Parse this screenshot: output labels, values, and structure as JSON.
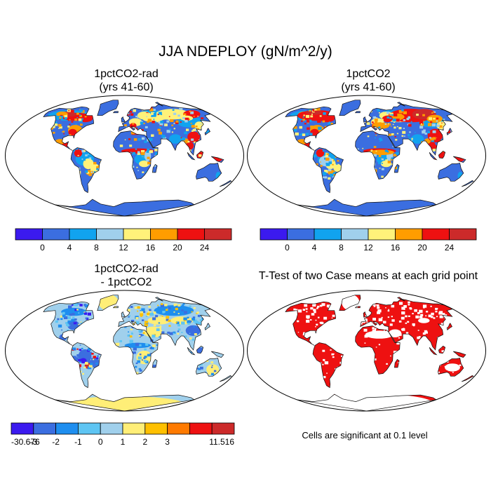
{
  "page": {
    "title": "JJA NDEPLOY (gN/m^2/y)",
    "footnote": "Cells are significant at 0.1 level"
  },
  "colors": {
    "abs_scale": [
      "#3b1aef",
      "#3b6ee0",
      "#11a3ef",
      "#a0d0ec",
      "#fff27a",
      "#ff9d00",
      "#ee1111",
      "#cc2a2a"
    ],
    "diff_scale": [
      "#3b1aef",
      "#3b6ee0",
      "#1e8eef",
      "#5ec5f3",
      "#a0d0ec",
      "#ffee77",
      "#ffc000",
      "#ff7a00",
      "#ee1111",
      "#cc2a2a"
    ],
    "significant": "#ee1111"
  },
  "chart_data": [
    {
      "type": "heatmap",
      "title": "1pctCO2-rad",
      "subtitle": "(yrs 41-60)",
      "colorbar_labels": [
        "0",
        "4",
        "8",
        "12",
        "16",
        "20",
        "24"
      ]
    },
    {
      "type": "heatmap",
      "title": "1pctCO2",
      "subtitle": "(yrs 41-60)",
      "colorbar_labels": [
        "0",
        "4",
        "8",
        "12",
        "16",
        "20",
        "24"
      ]
    },
    {
      "type": "heatmap",
      "title": "1pctCO2-rad",
      "subtitle": "- 1pctCO2",
      "colorbar_labels": [
        "-30.676",
        "-3",
        "-2",
        "-1",
        "0",
        "1",
        "2",
        "3",
        "11.516"
      ]
    },
    {
      "type": "heatmap",
      "title": "T-Test of two Case means at each grid point",
      "subtitle": "",
      "colorbar_labels": []
    }
  ]
}
